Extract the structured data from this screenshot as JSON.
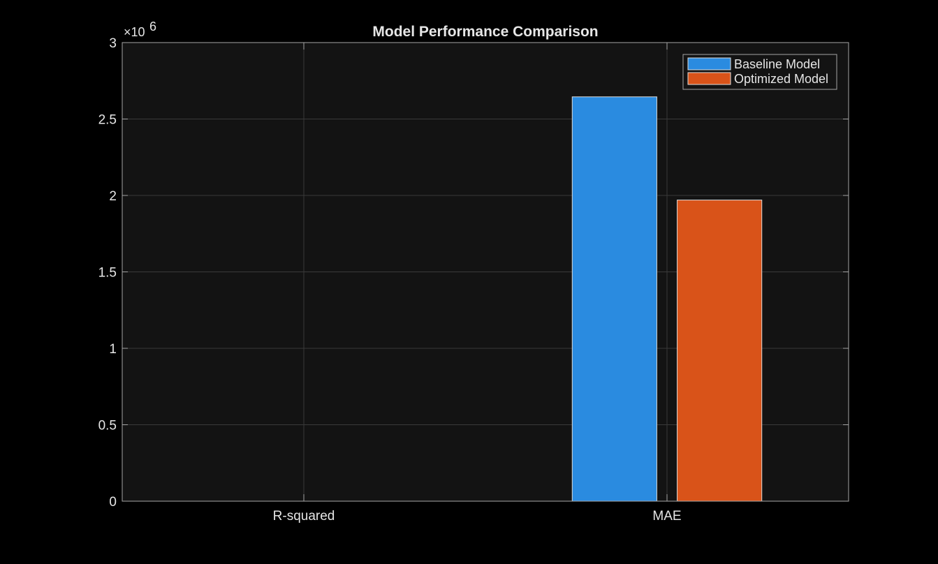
{
  "chart_data": {
    "type": "bar",
    "title": "Model Performance Comparison",
    "xlabel": "",
    "ylabel": "",
    "categories": [
      "R-squared",
      "MAE"
    ],
    "series": [
      {
        "name": "Baseline Model",
        "values": [
          0.0,
          2645000
        ],
        "color": "#2a8be0"
      },
      {
        "name": "Optimized Model",
        "values": [
          0.0,
          1970000
        ],
        "color": "#d95319"
      }
    ],
    "ylim": [
      0,
      3000000
    ],
    "yticks": [
      0,
      500000,
      1000000,
      1500000,
      2000000,
      2500000,
      3000000
    ],
    "ytick_labels": [
      "0",
      "0.5",
      "1",
      "1.5",
      "2",
      "2.5",
      "3"
    ],
    "y_exponent_base": "×10",
    "y_exponent": "6",
    "grid": true,
    "legend_position": "top-right",
    "colors": {
      "figure_background": "#000000",
      "axes_background": "#131313",
      "axes_edge": "#a6a6a6",
      "grid": "#3a3a3a",
      "text": "#e6e6e6"
    }
  }
}
